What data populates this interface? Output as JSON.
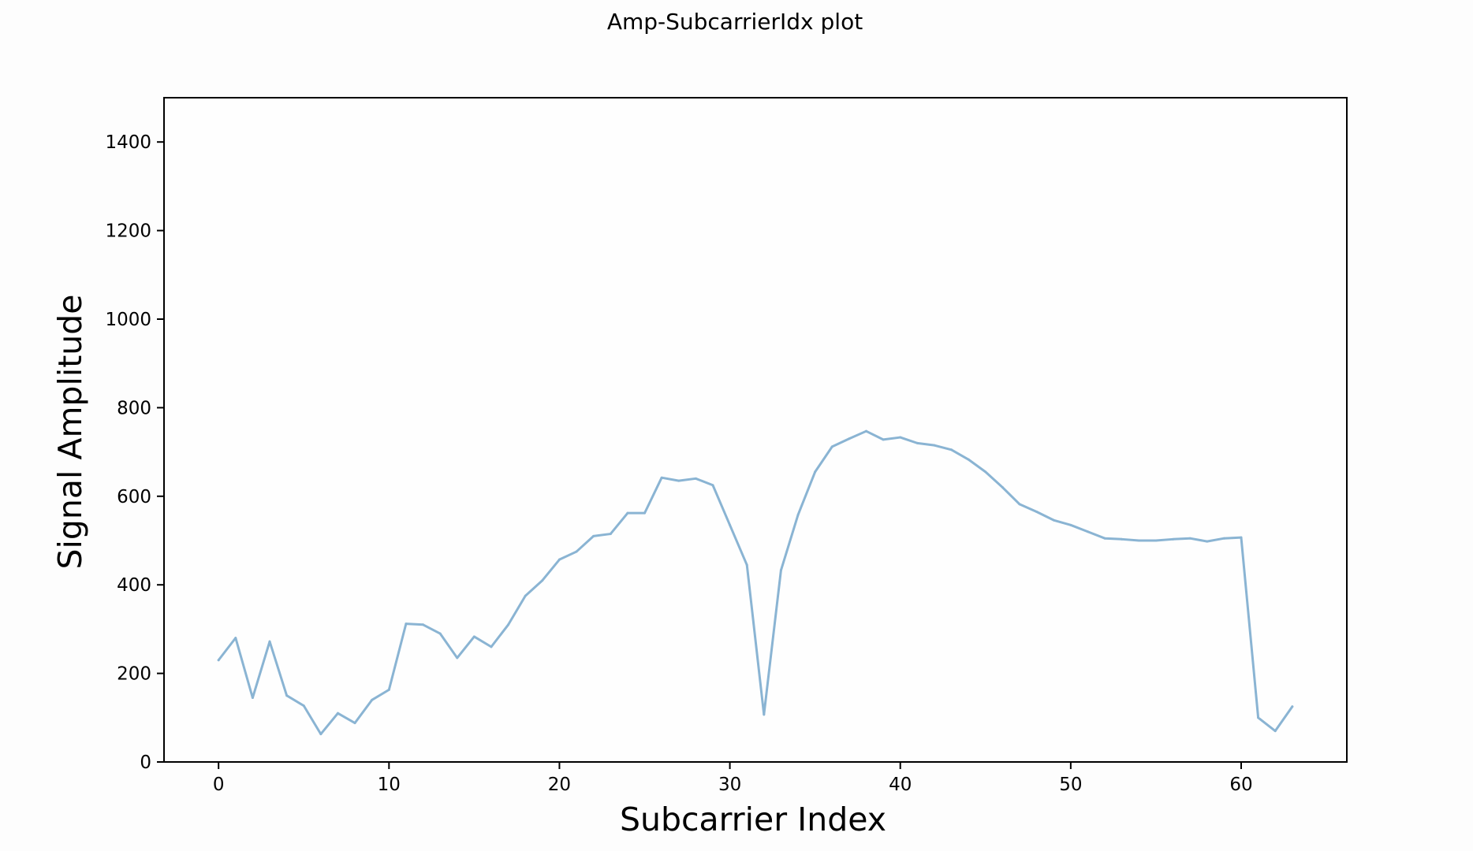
{
  "chart_data": {
    "type": "line",
    "title": "Amp-SubcarrierIdx plot",
    "xlabel": "Subcarrier Index",
    "ylabel": "Signal Amplitude",
    "xlim": [
      -3.2,
      66.2
    ],
    "ylim": [
      0,
      1500
    ],
    "xticks": [
      0,
      10,
      20,
      30,
      40,
      50,
      60
    ],
    "yticks": [
      0,
      200,
      400,
      600,
      800,
      1000,
      1200,
      1400
    ],
    "grid": false,
    "series": [
      {
        "color": "#8ab4d3",
        "x": [
          0,
          1,
          2,
          3,
          4,
          5,
          6,
          7,
          8,
          9,
          10,
          11,
          12,
          13,
          14,
          15,
          16,
          17,
          18,
          19,
          20,
          21,
          22,
          23,
          24,
          25,
          26,
          27,
          28,
          29,
          30,
          31,
          32,
          33,
          34,
          35,
          36,
          37,
          38,
          39,
          40,
          41,
          42,
          43,
          44,
          45,
          46,
          47,
          48,
          49,
          50,
          51,
          52,
          53,
          54,
          55,
          56,
          57,
          58,
          59,
          60,
          61,
          62,
          63
        ],
        "values": [
          230,
          280,
          145,
          272,
          150,
          127,
          63,
          110,
          88,
          140,
          163,
          312,
          310,
          290,
          235,
          283,
          260,
          310,
          375,
          410,
          457,
          475,
          510,
          515,
          562,
          562,
          642,
          635,
          640,
          625,
          535,
          445,
          107,
          433,
          558,
          655,
          712,
          730,
          747,
          728,
          733,
          720,
          715,
          705,
          683,
          655,
          620,
          582,
          565,
          546,
          535,
          520,
          505,
          503,
          500,
          500,
          503,
          505,
          498,
          505,
          507,
          100,
          70,
          125
        ]
      }
    ]
  }
}
